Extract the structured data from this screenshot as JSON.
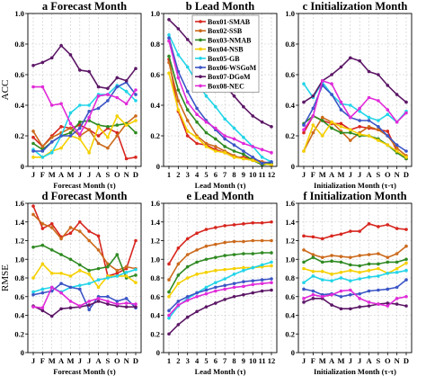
{
  "chart_data": [
    {
      "id": "a",
      "type": "line",
      "title": "a Forecast Month",
      "xlabel": "Forecast Month (τ)",
      "ylabel": "ACC",
      "categories": [
        "J",
        "F",
        "M",
        "A",
        "M",
        "J",
        "J",
        "A",
        "S",
        "O",
        "N",
        "D"
      ],
      "ylim": [
        0,
        1.0
      ],
      "yticks": [
        "0",
        "0.2",
        "0.4",
        "0.6",
        "0.8",
        "1.0"
      ],
      "grid": true,
      "series": [
        {
          "name": "Box01-SMAB",
          "color": "#d7261e",
          "values": [
            0.19,
            0.13,
            0.2,
            0.26,
            0.25,
            0.27,
            0.24,
            0.2,
            0.25,
            0.22,
            0.05,
            0.06
          ]
        },
        {
          "name": "Box02-SSB",
          "color": "#cc6a1c",
          "values": [
            0.23,
            0.13,
            0.19,
            0.22,
            0.25,
            0.2,
            0.24,
            0.15,
            0.12,
            0.2,
            0.28,
            0.33
          ]
        },
        {
          "name": "Box03-NMAB",
          "color": "#2f8a22",
          "values": [
            0.15,
            0.11,
            0.16,
            0.2,
            0.22,
            0.29,
            0.3,
            0.27,
            0.26,
            0.27,
            0.28,
            0.22
          ]
        },
        {
          "name": "Box04-NSB",
          "color": "#f5d000",
          "values": [
            0.06,
            0.06,
            0.1,
            0.12,
            0.2,
            0.18,
            0.09,
            0.26,
            0.19,
            0.33,
            0.27,
            0.3
          ]
        },
        {
          "name": "Box05-GB",
          "color": "#22d4e8",
          "values": [
            0.11,
            0.06,
            0.09,
            0.2,
            0.35,
            0.4,
            0.4,
            0.47,
            0.47,
            0.53,
            0.49,
            0.43
          ]
        },
        {
          "name": "Box06-WSGoM",
          "color": "#3b55c6",
          "values": [
            0.1,
            0.1,
            0.16,
            0.2,
            0.2,
            0.25,
            0.36,
            0.38,
            0.43,
            0.52,
            0.55,
            0.47
          ]
        },
        {
          "name": "Box07-DGoM",
          "color": "#5c1766",
          "values": [
            0.66,
            0.68,
            0.71,
            0.79,
            0.73,
            0.63,
            0.62,
            0.52,
            0.51,
            0.58,
            0.56,
            0.64
          ]
        },
        {
          "name": "Box08-NEC",
          "color": "#e02bd8",
          "values": [
            0.52,
            0.52,
            0.4,
            0.41,
            0.28,
            0.21,
            0.32,
            0.46,
            0.47,
            0.45,
            0.41,
            0.5
          ]
        }
      ]
    },
    {
      "id": "b",
      "type": "line",
      "title": "b Lead Month",
      "xlabel": "Lead Month (τ)",
      "ylabel": "",
      "categories": [
        "1",
        "2",
        "3",
        "4",
        "5",
        "6",
        "7",
        "8",
        "9",
        "10",
        "11",
        "12"
      ],
      "ylim": [
        0,
        1.0
      ],
      "yticks": [
        "0",
        "0.2",
        "0.4",
        "0.6",
        "0.8",
        "1.0"
      ],
      "grid": true,
      "series": [
        {
          "name": "Box01-SMAB",
          "color": "#d7261e",
          "values": [
            0.7,
            0.36,
            0.2,
            0.15,
            0.14,
            0.11,
            0.09,
            0.06,
            0.06,
            0.05,
            0.03,
            0.02
          ]
        },
        {
          "name": "Box02-SSB",
          "color": "#cc6a1c",
          "values": [
            0.68,
            0.43,
            0.3,
            0.2,
            0.15,
            0.13,
            0.1,
            0.07,
            0.05,
            0.04,
            0.03,
            0.01
          ]
        },
        {
          "name": "Box03-NMAB",
          "color": "#2f8a22",
          "values": [
            0.72,
            0.5,
            0.37,
            0.29,
            0.22,
            0.18,
            0.13,
            0.1,
            0.08,
            0.04,
            0.01,
            0.02
          ]
        },
        {
          "name": "Box04-NSB",
          "color": "#f5d000",
          "values": [
            0.61,
            0.37,
            0.23,
            0.19,
            0.13,
            0.1,
            0.09,
            0.06,
            0.05,
            0.04,
            0.02,
            0.01
          ]
        },
        {
          "name": "Box05-GB",
          "color": "#22d4e8",
          "values": [
            0.86,
            0.73,
            0.65,
            0.55,
            0.46,
            0.39,
            0.31,
            0.25,
            0.19,
            0.13,
            0.06,
            0.03
          ]
        },
        {
          "name": "Box06-WSGoM",
          "color": "#3b55c6",
          "values": [
            0.84,
            0.62,
            0.49,
            0.38,
            0.3,
            0.24,
            0.18,
            0.14,
            0.1,
            0.06,
            0.02,
            0.03
          ]
        },
        {
          "name": "Box07-DGoM",
          "color": "#5c1766",
          "values": [
            0.96,
            0.9,
            0.83,
            0.76,
            0.68,
            0.6,
            0.53,
            0.46,
            0.39,
            0.33,
            0.29,
            0.26
          ]
        },
        {
          "name": "Box08-NEC",
          "color": "#e02bd8",
          "values": [
            0.82,
            0.58,
            0.42,
            0.34,
            0.29,
            0.25,
            0.2,
            0.18,
            0.15,
            0.13,
            0.11,
            0.09
          ]
        }
      ]
    },
    {
      "id": "c",
      "type": "line",
      "title": "c Initialization Month",
      "xlabel": "Initialization Month (τ-τ)",
      "ylabel": "",
      "categories": [
        "J",
        "F",
        "M",
        "A",
        "M",
        "J",
        "J",
        "A",
        "S",
        "O",
        "N",
        "D"
      ],
      "ylim": [
        0,
        1.0
      ],
      "yticks": [
        "0",
        "0.2",
        "0.4",
        "0.6",
        "0.8",
        "1.0"
      ],
      "grid": true,
      "series": [
        {
          "name": "Box01-SMAB",
          "color": "#d7261e",
          "values": [
            0.22,
            0.33,
            0.3,
            0.28,
            0.28,
            0.24,
            0.26,
            0.25,
            0.24,
            0.23,
            0.1,
            0.05
          ]
        },
        {
          "name": "Box02-SSB",
          "color": "#cc6a1c",
          "values": [
            0.1,
            0.22,
            0.32,
            0.29,
            0.23,
            0.17,
            0.22,
            0.26,
            0.24,
            0.2,
            0.12,
            0.07
          ]
        },
        {
          "name": "Box03-NMAB",
          "color": "#2f8a22",
          "values": [
            0.28,
            0.33,
            0.3,
            0.25,
            0.22,
            0.22,
            0.2,
            0.2,
            0.18,
            0.14,
            0.09,
            0.05
          ]
        },
        {
          "name": "Box04-NSB",
          "color": "#f5d000",
          "values": [
            0.1,
            0.27,
            0.2,
            0.29,
            0.26,
            0.24,
            0.21,
            0.2,
            0.17,
            0.14,
            0.1,
            0.06
          ]
        },
        {
          "name": "Box05-GB",
          "color": "#22d4e8",
          "values": [
            0.54,
            0.45,
            0.55,
            0.47,
            0.41,
            0.4,
            0.36,
            0.32,
            0.3,
            0.34,
            0.29,
            0.36
          ]
        },
        {
          "name": "Box06-WSGoM",
          "color": "#3b55c6",
          "values": [
            0.27,
            0.38,
            0.53,
            0.47,
            0.37,
            0.32,
            0.3,
            0.3,
            0.26,
            0.2,
            0.14,
            0.1
          ]
        },
        {
          "name": "Box07-DGoM",
          "color": "#5c1766",
          "values": [
            0.42,
            0.46,
            0.56,
            0.6,
            0.65,
            0.71,
            0.69,
            0.62,
            0.6,
            0.53,
            0.47,
            0.42
          ]
        },
        {
          "name": "Box08-NEC",
          "color": "#e02bd8",
          "values": [
            0.24,
            0.33,
            0.56,
            0.54,
            0.42,
            0.32,
            0.38,
            0.45,
            0.43,
            0.37,
            0.29,
            0.35
          ]
        }
      ]
    },
    {
      "id": "d",
      "type": "line",
      "title": "d Forecast Month",
      "xlabel": "Forecast Month (τ)",
      "ylabel": "RMSE",
      "categories": [
        "J",
        "F",
        "M",
        "A",
        "M",
        "J",
        "J",
        "A",
        "S",
        "O",
        "N",
        "D"
      ],
      "ylim": [
        0,
        1.6
      ],
      "yticks": [
        "0",
        "0.2",
        "0.4",
        "0.6",
        "0.8",
        "1.0",
        "1.2",
        "1.4",
        "1.6"
      ],
      "grid": true,
      "series": [
        {
          "name": "Box01-SMAB",
          "color": "#d7261e",
          "values": [
            1.57,
            1.33,
            1.38,
            1.24,
            1.28,
            1.4,
            1.3,
            1.25,
            0.82,
            0.85,
            0.9,
            1.2
          ]
        },
        {
          "name": "Box02-SSB",
          "color": "#cc6a1c",
          "values": [
            1.48,
            1.38,
            1.34,
            1.22,
            1.34,
            1.3,
            1.2,
            1.1,
            0.95,
            0.88,
            0.92,
            0.9
          ]
        },
        {
          "name": "Box03-NMAB",
          "color": "#2f8a22",
          "values": [
            1.13,
            1.15,
            1.1,
            1.05,
            1.0,
            0.94,
            0.88,
            0.9,
            0.92,
            1.05,
            0.8,
            0.83
          ]
        },
        {
          "name": "Box04-NSB",
          "color": "#f5d000",
          "values": [
            0.8,
            0.95,
            0.85,
            0.85,
            0.82,
            0.88,
            0.84,
            0.7,
            0.82,
            0.82,
            0.82,
            0.75
          ]
        },
        {
          "name": "Box05-GB",
          "color": "#22d4e8",
          "values": [
            0.65,
            0.68,
            0.7,
            0.65,
            0.7,
            0.72,
            0.74,
            0.78,
            0.8,
            0.82,
            0.86,
            0.89
          ]
        },
        {
          "name": "Box06-WSGoM",
          "color": "#3b55c6",
          "values": [
            0.62,
            0.64,
            0.66,
            0.74,
            0.7,
            0.68,
            0.46,
            0.6,
            0.6,
            0.55,
            0.58,
            0.48
          ]
        },
        {
          "name": "Box07-DGoM",
          "color": "#5c1766",
          "values": [
            0.5,
            0.45,
            0.39,
            0.47,
            0.48,
            0.49,
            0.51,
            0.55,
            0.52,
            0.5,
            0.49,
            0.49
          ]
        },
        {
          "name": "Box08-NEC",
          "color": "#e02bd8",
          "values": [
            0.49,
            0.48,
            0.7,
            0.64,
            0.55,
            0.5,
            0.55,
            0.58,
            0.55,
            0.52,
            0.53,
            0.52
          ]
        }
      ]
    },
    {
      "id": "e",
      "type": "line",
      "title": "e Lead Month",
      "xlabel": "Lead Month (τ)",
      "ylabel": "",
      "categories": [
        "1",
        "2",
        "3",
        "4",
        "5",
        "6",
        "7",
        "8",
        "9",
        "10",
        "11",
        "12"
      ],
      "ylim": [
        0,
        1.6
      ],
      "yticks": [
        "0",
        "0.2",
        "0.4",
        "0.6",
        "0.8",
        "1.0",
        "1.2",
        "1.4",
        "1.6"
      ],
      "grid": true,
      "series": [
        {
          "name": "Box01-SMAB",
          "color": "#d7261e",
          "values": [
            0.95,
            1.12,
            1.22,
            1.28,
            1.32,
            1.34,
            1.36,
            1.37,
            1.38,
            1.39,
            1.39,
            1.4
          ]
        },
        {
          "name": "Box02-SSB",
          "color": "#cc6a1c",
          "values": [
            0.78,
            0.95,
            1.05,
            1.1,
            1.14,
            1.16,
            1.18,
            1.19,
            1.19,
            1.2,
            1.2,
            1.2
          ]
        },
        {
          "name": "Box03-NMAB",
          "color": "#2f8a22",
          "values": [
            0.65,
            0.83,
            0.92,
            0.97,
            1.0,
            1.02,
            1.04,
            1.05,
            1.06,
            1.06,
            1.07,
            1.07
          ]
        },
        {
          "name": "Box04-NSB",
          "color": "#f5d000",
          "values": [
            0.6,
            0.74,
            0.8,
            0.84,
            0.86,
            0.88,
            0.89,
            0.9,
            0.91,
            0.91,
            0.92,
            0.93
          ]
        },
        {
          "name": "Box05-GB",
          "color": "#22d4e8",
          "values": [
            0.37,
            0.5,
            0.58,
            0.64,
            0.7,
            0.75,
            0.79,
            0.84,
            0.88,
            0.91,
            0.94,
            0.97
          ]
        },
        {
          "name": "Box06-WSGoM",
          "color": "#3b55c6",
          "values": [
            0.45,
            0.55,
            0.6,
            0.64,
            0.67,
            0.7,
            0.72,
            0.74,
            0.76,
            0.77,
            0.78,
            0.79
          ]
        },
        {
          "name": "Box07-DGoM",
          "color": "#5c1766",
          "values": [
            0.2,
            0.3,
            0.38,
            0.44,
            0.49,
            0.53,
            0.57,
            0.6,
            0.62,
            0.64,
            0.66,
            0.67
          ]
        },
        {
          "name": "Box08-NEC",
          "color": "#e02bd8",
          "values": [
            0.4,
            0.51,
            0.56,
            0.6,
            0.63,
            0.66,
            0.68,
            0.7,
            0.71,
            0.73,
            0.74,
            0.75
          ]
        }
      ]
    },
    {
      "id": "f",
      "type": "line",
      "title": "f Initialization Month",
      "xlabel": "Initialization Month (τ-τ)",
      "ylabel": "",
      "categories": [
        "J",
        "F",
        "M",
        "A",
        "M",
        "J",
        "J",
        "A",
        "S",
        "O",
        "N",
        "D"
      ],
      "ylim": [
        0,
        1.6
      ],
      "yticks": [
        "0",
        "0.2",
        "0.4",
        "0.6",
        "0.8",
        "1.0",
        "1.2",
        "1.4",
        "1.6"
      ],
      "grid": true,
      "series": [
        {
          "name": "Box01-SMAB",
          "color": "#d7261e",
          "values": [
            1.25,
            1.24,
            1.22,
            1.25,
            1.27,
            1.3,
            1.3,
            1.38,
            1.35,
            1.37,
            1.33,
            1.32
          ]
        },
        {
          "name": "Box02-SSB",
          "color": "#cc6a1c",
          "values": [
            1.1,
            1.05,
            1.02,
            1.04,
            1.03,
            1.02,
            1.04,
            1.05,
            1.06,
            1.02,
            1.06,
            1.14
          ]
        },
        {
          "name": "Box03-NMAB",
          "color": "#2f8a22",
          "values": [
            0.97,
            1.02,
            0.97,
            0.98,
            0.97,
            0.94,
            0.93,
            0.95,
            0.95,
            0.97,
            0.97,
            1.0
          ]
        },
        {
          "name": "Box04-NSB",
          "color": "#f5d000",
          "values": [
            0.9,
            0.87,
            0.87,
            0.84,
            0.86,
            0.88,
            0.86,
            0.88,
            0.9,
            0.85,
            0.9,
            0.96
          ]
        },
        {
          "name": "Box05-GB",
          "color": "#22d4e8",
          "values": [
            0.75,
            0.82,
            0.78,
            0.77,
            0.8,
            0.77,
            0.79,
            0.81,
            0.82,
            0.85,
            0.86,
            0.88
          ]
        },
        {
          "name": "Box06-WSGoM",
          "color": "#3b55c6",
          "values": [
            0.68,
            0.66,
            0.62,
            0.63,
            0.6,
            0.62,
            0.63,
            0.66,
            0.67,
            0.68,
            0.7,
            0.78
          ]
        },
        {
          "name": "Box07-DGoM",
          "color": "#5c1766",
          "values": [
            0.54,
            0.58,
            0.58,
            0.51,
            0.47,
            0.47,
            0.49,
            0.5,
            0.52,
            0.53,
            0.52,
            0.5
          ]
        },
        {
          "name": "Box08-NEC",
          "color": "#e02bd8",
          "values": [
            0.58,
            0.62,
            0.6,
            0.62,
            0.66,
            0.67,
            0.58,
            0.54,
            0.52,
            0.5,
            0.58,
            0.6
          ]
        }
      ]
    }
  ]
}
